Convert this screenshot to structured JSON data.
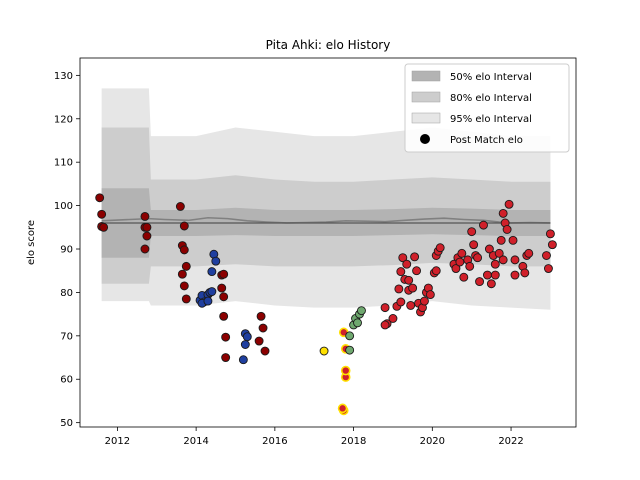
{
  "chart_data": {
    "type": "scatter",
    "title": "Pita Ahki: elo History",
    "xlabel": "",
    "ylabel": "elo score",
    "xlim": [
      2011.05,
      2023.65
    ],
    "ylim": [
      49,
      134
    ],
    "x_ticks": [
      "2012",
      "2014",
      "2016",
      "2018",
      "2020",
      "2022"
    ],
    "x_tick_values": [
      2012,
      2014,
      2016,
      2018,
      2020,
      2022
    ],
    "y_ticks": [
      "50",
      "60",
      "70",
      "80",
      "90",
      "100",
      "110",
      "120",
      "130"
    ],
    "y_tick_values": [
      50,
      60,
      70,
      80,
      90,
      100,
      110,
      120,
      130
    ],
    "grid": false,
    "legend_position": "upper right",
    "legend": [
      {
        "label": "50% elo Interval",
        "kind": "band50"
      },
      {
        "label": "80% elo Interval",
        "kind": "band80"
      },
      {
        "label": "95% elo Interval",
        "kind": "band95"
      },
      {
        "label": "Post Match elo",
        "kind": "marker"
      }
    ],
    "colors": {
      "band95": "#e6e6e6",
      "band80": "#cdcdcd",
      "band50": "#b3b3b3",
      "median": "#808080",
      "darkred": "#8b0000",
      "blue": "#1f3f9f",
      "yellow": "#ffe000",
      "green": "#6fa86f",
      "red": "#d0202a"
    },
    "median_line": {
      "x": [
        2011.6,
        2012.8,
        2013.2,
        2013.8,
        2014.3,
        2014.8,
        2015.3,
        2015.8,
        2016.3,
        2016.8,
        2017.3,
        2017.8,
        2018.3,
        2018.8,
        2019.3,
        2019.8,
        2020.3,
        2020.8,
        2021.3,
        2021.7,
        2022.0,
        2022.5,
        2023.0
      ],
      "y": [
        96.5,
        97.0,
        96.8,
        96.6,
        97.2,
        97.0,
        96.5,
        96.2,
        96.0,
        96.1,
        96.2,
        96.5,
        96.4,
        96.3,
        96.6,
        96.9,
        97.1,
        96.8,
        96.6,
        96.2,
        96.0,
        96.1,
        96.0
      ]
    },
    "reference_line": {
      "x": [
        2011.6,
        2023.0
      ],
      "y": [
        96.0,
        96.0
      ]
    },
    "bands": {
      "x": [
        2011.6,
        2012.8,
        2012.85,
        2014.0,
        2015.0,
        2016.0,
        2017.0,
        2018.0,
        2019.0,
        2020.0,
        2021.0,
        2022.0,
        2023.0
      ],
      "p50_upper": [
        104,
        104,
        99,
        99,
        99.5,
        99,
        99,
        99,
        99.2,
        99.5,
        99.3,
        99.0,
        99.0
      ],
      "p50_lower": [
        88,
        88,
        93,
        93,
        93.2,
        93,
        93,
        93,
        93.2,
        93.4,
        93.2,
        93.0,
        93.0
      ],
      "p80_upper": [
        118,
        118,
        106,
        106,
        107,
        106,
        105.5,
        105.5,
        106,
        106.5,
        106,
        105.5,
        105.5
      ],
      "p80_lower": [
        82,
        82,
        86,
        86,
        86.5,
        86,
        86,
        86,
        86.3,
        86.8,
        86.5,
        86,
        86
      ],
      "p95_upper": [
        127,
        127,
        116,
        116,
        118,
        117,
        116,
        116,
        117,
        118,
        117,
        116,
        116
      ],
      "p95_lower": [
        78,
        78,
        77,
        77,
        78,
        77,
        76.5,
        76.5,
        77,
        78,
        77,
        76.5,
        76
      ]
    },
    "series": [
      {
        "color": "darkred",
        "points": [
          [
            2011.55,
            101.8
          ],
          [
            2011.6,
            98.0
          ],
          [
            2011.6,
            95.2
          ],
          [
            2011.65,
            95.0
          ],
          [
            2012.7,
            97.5
          ],
          [
            2012.7,
            95.0
          ],
          [
            2012.75,
            95.0
          ],
          [
            2012.7,
            90.0
          ],
          [
            2012.75,
            93.0
          ],
          [
            2013.6,
            99.8
          ],
          [
            2013.65,
            90.8
          ],
          [
            2013.7,
            95.3
          ],
          [
            2013.7,
            89.8
          ],
          [
            2013.75,
            86.0
          ],
          [
            2013.65,
            84.2
          ],
          [
            2013.7,
            81.5
          ],
          [
            2013.75,
            78.5
          ],
          [
            2014.65,
            84.0
          ],
          [
            2014.7,
            84.2
          ],
          [
            2014.65,
            81.0
          ],
          [
            2014.7,
            79.0
          ],
          [
            2014.7,
            74.5
          ],
          [
            2014.75,
            69.7
          ],
          [
            2014.75,
            65.0
          ],
          [
            2015.6,
            68.8
          ],
          [
            2015.65,
            74.5
          ],
          [
            2015.7,
            71.8
          ],
          [
            2015.75,
            66.5
          ]
        ]
      },
      {
        "color": "blue",
        "points": [
          [
            2014.1,
            78.2
          ],
          [
            2014.15,
            79.3
          ],
          [
            2014.2,
            77.8
          ],
          [
            2014.15,
            77.5
          ],
          [
            2014.3,
            79.5
          ],
          [
            2014.35,
            80.0
          ],
          [
            2014.3,
            78.0
          ],
          [
            2014.4,
            80.2
          ],
          [
            2014.4,
            84.8
          ],
          [
            2014.45,
            88.8
          ],
          [
            2014.5,
            87.2
          ],
          [
            2015.25,
            70.5
          ],
          [
            2015.3,
            69.8
          ],
          [
            2015.25,
            68.0
          ],
          [
            2015.2,
            64.5
          ]
        ]
      },
      {
        "color": "yellow",
        "points": [
          [
            2017.25,
            66.5
          ]
        ]
      },
      {
        "color": "red",
        "points": [
          [
            2017.75,
            52.8
          ],
          [
            2017.8,
            60.5
          ],
          [
            2017.8,
            62.0
          ],
          [
            2017.8,
            67.0
          ],
          [
            2017.75,
            70.8
          ],
          [
            2017.72,
            53.3
          ]
        ]
      },
      {
        "color": "green",
        "points": [
          [
            2017.9,
            70.0
          ],
          [
            2018.0,
            72.5
          ],
          [
            2017.9,
            66.7
          ],
          [
            2018.05,
            74.0
          ],
          [
            2018.1,
            73.0
          ],
          [
            2018.15,
            75.0
          ],
          [
            2018.2,
            75.8
          ]
        ]
      },
      {
        "color": "red",
        "points": [
          [
            2018.8,
            76.5
          ],
          [
            2018.85,
            72.8
          ],
          [
            2018.8,
            72.5
          ],
          [
            2019.0,
            74.0
          ],
          [
            2019.1,
            76.8
          ],
          [
            2019.2,
            77.8
          ],
          [
            2019.15,
            80.8
          ],
          [
            2019.2,
            84.8
          ],
          [
            2019.3,
            83.0
          ],
          [
            2019.25,
            88.0
          ],
          [
            2019.35,
            86.5
          ],
          [
            2019.4,
            82.8
          ],
          [
            2019.4,
            80.5
          ],
          [
            2019.5,
            81.0
          ],
          [
            2019.45,
            77.0
          ],
          [
            2019.55,
            88.2
          ],
          [
            2019.6,
            85.0
          ],
          [
            2019.65,
            77.5
          ],
          [
            2019.7,
            75.5
          ],
          [
            2019.75,
            76.5
          ],
          [
            2019.8,
            78.0
          ],
          [
            2019.85,
            80.0
          ],
          [
            2019.9,
            81.0
          ],
          [
            2019.95,
            79.5
          ],
          [
            2020.05,
            84.5
          ],
          [
            2020.1,
            85.0
          ],
          [
            2020.1,
            88.5
          ],
          [
            2020.15,
            89.5
          ],
          [
            2020.2,
            90.3
          ],
          [
            2020.55,
            86.5
          ],
          [
            2020.6,
            85.5
          ],
          [
            2020.65,
            88.0
          ],
          [
            2020.7,
            87.0
          ],
          [
            2020.75,
            89.0
          ],
          [
            2020.8,
            83.5
          ],
          [
            2020.9,
            87.5
          ],
          [
            2020.95,
            86.0
          ],
          [
            2021.0,
            94.0
          ],
          [
            2021.05,
            91.0
          ],
          [
            2021.1,
            88.5
          ],
          [
            2021.15,
            88.0
          ],
          [
            2021.2,
            82.5
          ],
          [
            2021.3,
            95.5
          ],
          [
            2021.4,
            84.0
          ],
          [
            2021.45,
            90.0
          ],
          [
            2021.5,
            82.0
          ],
          [
            2021.55,
            88.5
          ],
          [
            2021.6,
            86.5
          ],
          [
            2021.7,
            89.0
          ],
          [
            2021.75,
            92.0
          ],
          [
            2021.8,
            98.2
          ],
          [
            2021.85,
            96.0
          ],
          [
            2021.9,
            94.5
          ],
          [
            2021.95,
            100.3
          ],
          [
            2022.05,
            92.0
          ],
          [
            2022.1,
            87.5
          ],
          [
            2022.1,
            84.0
          ],
          [
            2022.3,
            86.0
          ],
          [
            2022.35,
            84.5
          ],
          [
            2022.4,
            88.5
          ],
          [
            2022.45,
            89.0
          ],
          [
            2022.9,
            88.5
          ],
          [
            2022.95,
            85.5
          ],
          [
            2023.0,
            93.5
          ],
          [
            2023.05,
            91.0
          ],
          [
            2021.8,
            87.5
          ],
          [
            2021.6,
            84.0
          ]
        ]
      }
    ]
  }
}
